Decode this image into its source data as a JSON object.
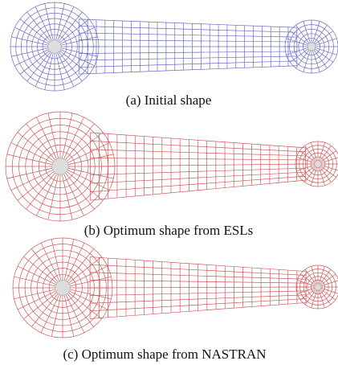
{
  "figure": {
    "captions": [
      "(a) Initial shape",
      "(b) Optimum shape from ESLs",
      "(c) Optimum shape from NASTRAN"
    ]
  }
}
